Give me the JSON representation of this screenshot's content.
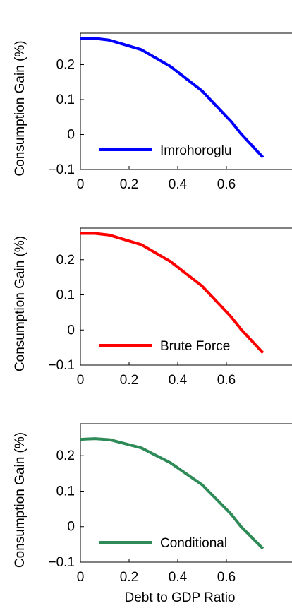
{
  "chart_data": [
    {
      "type": "line",
      "xlabel": "",
      "ylabel": "Consumption Gain (%)",
      "xlim": [
        0,
        0.75
      ],
      "ylim": [
        -0.1,
        0.29
      ],
      "xticks": [
        "0",
        "0.2",
        "0.4",
        "0.6"
      ],
      "yticks": [
        "−0.1",
        "0",
        "0.1",
        "0.2"
      ],
      "legend_position": "bottom-left",
      "series": [
        {
          "name": "Imrohoroglu",
          "color": "#0000ff",
          "x": [
            0,
            0.06,
            0.12,
            0.25,
            0.37,
            0.5,
            0.62,
            0.66,
            0.75
          ],
          "y": [
            0.275,
            0.275,
            0.27,
            0.243,
            0.195,
            0.125,
            0.037,
            0.002,
            -0.065
          ]
        }
      ]
    },
    {
      "type": "line",
      "xlabel": "",
      "ylabel": "Consumption Gain (%)",
      "xlim": [
        0,
        0.75
      ],
      "ylim": [
        -0.1,
        0.29
      ],
      "xticks": [
        "0",
        "0.2",
        "0.4",
        "0.6"
      ],
      "yticks": [
        "−0.1",
        "0",
        "0.1",
        "0.2"
      ],
      "legend_position": "bottom-left",
      "series": [
        {
          "name": "Brute Force",
          "color": "#ff0000",
          "x": [
            0,
            0.06,
            0.12,
            0.25,
            0.37,
            0.5,
            0.62,
            0.66,
            0.75
          ],
          "y": [
            0.275,
            0.275,
            0.27,
            0.243,
            0.195,
            0.125,
            0.037,
            0.002,
            -0.065
          ]
        }
      ]
    },
    {
      "type": "line",
      "xlabel": "Debt to GDP Ratio",
      "ylabel": "Consumption Gain (%)",
      "xlim": [
        0,
        0.75
      ],
      "ylim": [
        -0.1,
        0.29
      ],
      "xticks": [
        "0",
        "0.2",
        "0.4",
        "0.6"
      ],
      "yticks": [
        "−0.1",
        "0",
        "0.1",
        "0.2"
      ],
      "legend_position": "bottom-left",
      "series": [
        {
          "name": "Conditional",
          "color": "#2e8b57",
          "x": [
            0,
            0.06,
            0.12,
            0.25,
            0.37,
            0.5,
            0.62,
            0.66,
            0.75
          ],
          "y": [
            0.246,
            0.248,
            0.245,
            0.222,
            0.18,
            0.118,
            0.035,
            0.0,
            -0.062
          ]
        }
      ]
    }
  ]
}
